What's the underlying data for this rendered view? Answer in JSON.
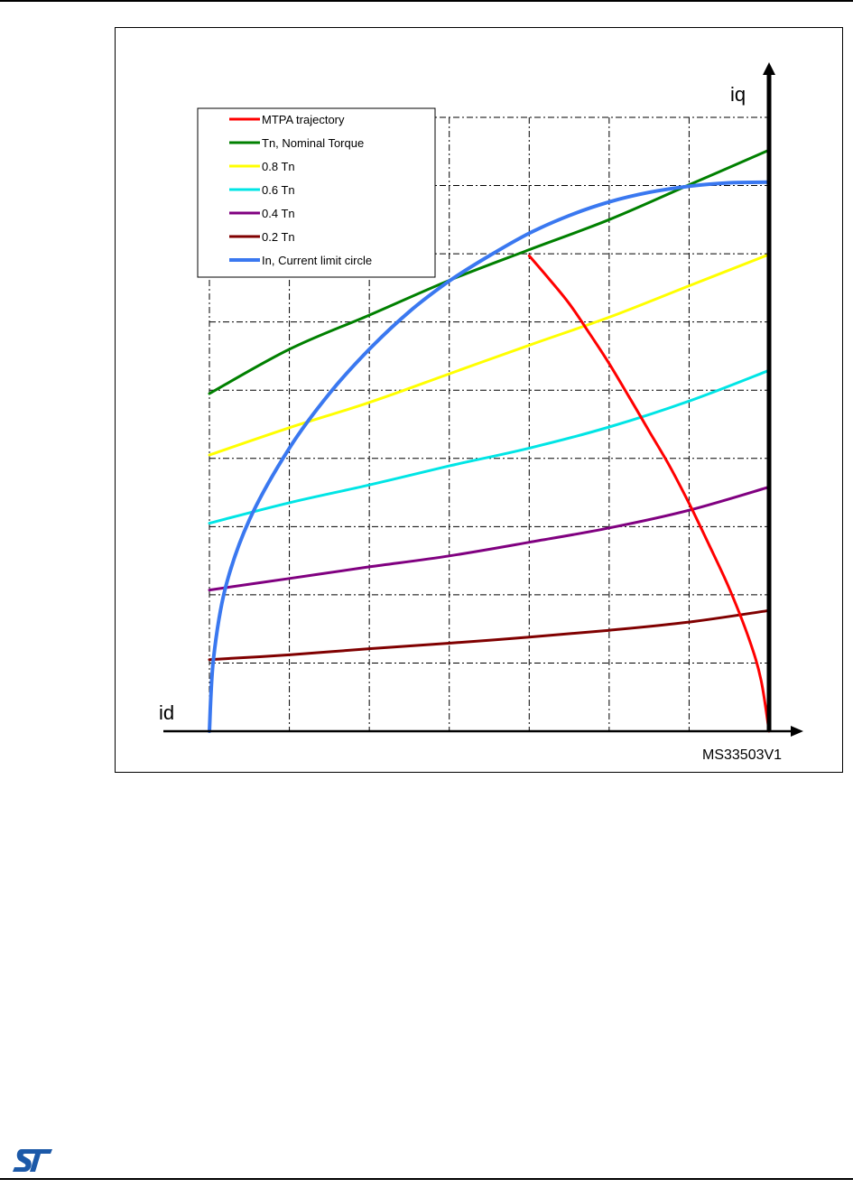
{
  "chart_data": {
    "type": "line",
    "title": "",
    "xlabel": "id",
    "ylabel": "iq",
    "xlim": [
      -7,
      0
    ],
    "ylim": [
      0,
      9
    ],
    "grid": true,
    "legend_placement": "top-left",
    "reference": "MS33503V1",
    "series": [
      {
        "name": "MTPA trajectory",
        "color": "#ff0000",
        "x": [
          0.0,
          -0.1,
          -0.25,
          -0.5,
          -0.75,
          -1.0,
          -1.25,
          -1.5,
          -1.75,
          -2.0,
          -2.25,
          -2.5,
          -2.75,
          -3.0
        ],
        "y": [
          0.0,
          0.75,
          1.35,
          2.1,
          2.73,
          3.34,
          3.9,
          4.4,
          4.9,
          5.39,
          5.84,
          6.27,
          6.63,
          6.97
        ]
      },
      {
        "name": "Tn, Nominal Torque",
        "color": "#008000",
        "x": [
          -7,
          -6,
          -5,
          -4,
          -3,
          -2,
          -1,
          0
        ],
        "y": [
          4.95,
          5.6,
          6.1,
          6.61,
          7.06,
          7.5,
          8.01,
          8.52
        ]
      },
      {
        "name": "0.8 Tn",
        "color": "#ffff00",
        "x": [
          -7,
          -6,
          -5,
          -4,
          -3,
          -2,
          -1,
          0
        ],
        "y": [
          4.05,
          4.45,
          4.82,
          5.24,
          5.66,
          6.07,
          6.53,
          6.99
        ]
      },
      {
        "name": "0.6 Tn",
        "color": "#00e5e5",
        "x": [
          -7,
          -6,
          -5,
          -4,
          -3,
          -2,
          -1,
          0
        ],
        "y": [
          3.05,
          3.35,
          3.61,
          3.89,
          4.15,
          4.46,
          4.84,
          5.29
        ]
      },
      {
        "name": "0.4 Tn",
        "color": "#800080",
        "x": [
          -7,
          -6,
          -5,
          -4,
          -3,
          -2,
          -1,
          0
        ],
        "y": [
          2.07,
          2.24,
          2.41,
          2.57,
          2.77,
          2.98,
          3.24,
          3.58
        ]
      },
      {
        "name": "0.2 Tn",
        "color": "#800000",
        "x": [
          -7,
          -6,
          -5,
          -4,
          -3,
          -2,
          -1,
          0
        ],
        "y": [
          1.05,
          1.12,
          1.21,
          1.29,
          1.38,
          1.48,
          1.6,
          1.77
        ]
      },
      {
        "name": "In, Current limit circle",
        "color": "#3a78f0",
        "x": [
          -7.0,
          -6.95,
          -6.8,
          -6.5,
          -6.0,
          -5.5,
          -5.0,
          -4.5,
          -4.0,
          -3.5,
          -3.0,
          -2.5,
          -2.0,
          -1.5,
          -1.0,
          -0.5,
          0.0
        ],
        "y": [
          0.0,
          1.05,
          2.1,
          3.1,
          4.15,
          4.95,
          5.6,
          6.15,
          6.6,
          6.97,
          7.3,
          7.56,
          7.76,
          7.9,
          7.99,
          8.04,
          8.05
        ]
      }
    ]
  }
}
